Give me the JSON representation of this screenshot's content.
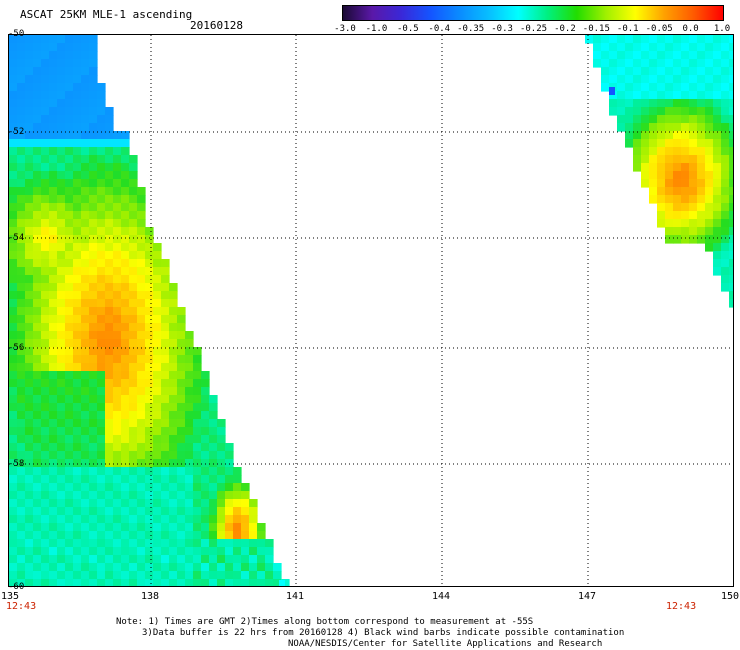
{
  "header": {
    "title": "ASCAT 25KM MLE-1 ascending",
    "date": "20160128"
  },
  "colorbar": {
    "labels": [
      "-3.0",
      "-1.0",
      "-0.5",
      "-0.4",
      "-0.35",
      "-0.3",
      "-0.25",
      "-0.2",
      "-0.15",
      "-0.1",
      "-0.05",
      "0.0",
      "1.0"
    ],
    "colors": [
      "#1a0a33",
      "#5a18a8",
      "#3a28d8",
      "#1455ff",
      "#0a8cff",
      "#08bfff",
      "#00ffff",
      "#00f080",
      "#22dd00",
      "#a0f000",
      "#ffff00",
      "#ffa000",
      "#ff5a00",
      "#ff0000"
    ]
  },
  "axes": {
    "lat_labels": [
      "-50",
      "-52",
      "-54",
      "-56",
      "-58",
      "-60"
    ],
    "lon_labels": [
      "135",
      "138",
      "141",
      "144",
      "147",
      "150"
    ],
    "time_left": "12:43",
    "time_right": "12:43"
  },
  "notes": {
    "line1": "Note: 1) Times are GMT 2)Times along bottom correspond to measurement at -55S",
    "line2": "3)Data buffer is 22 hrs from 20160128 4) Black wind barbs indicate possible contamination",
    "line3": "NOAA/NESDIS/Center for Satellite Applications and Research"
  }
}
